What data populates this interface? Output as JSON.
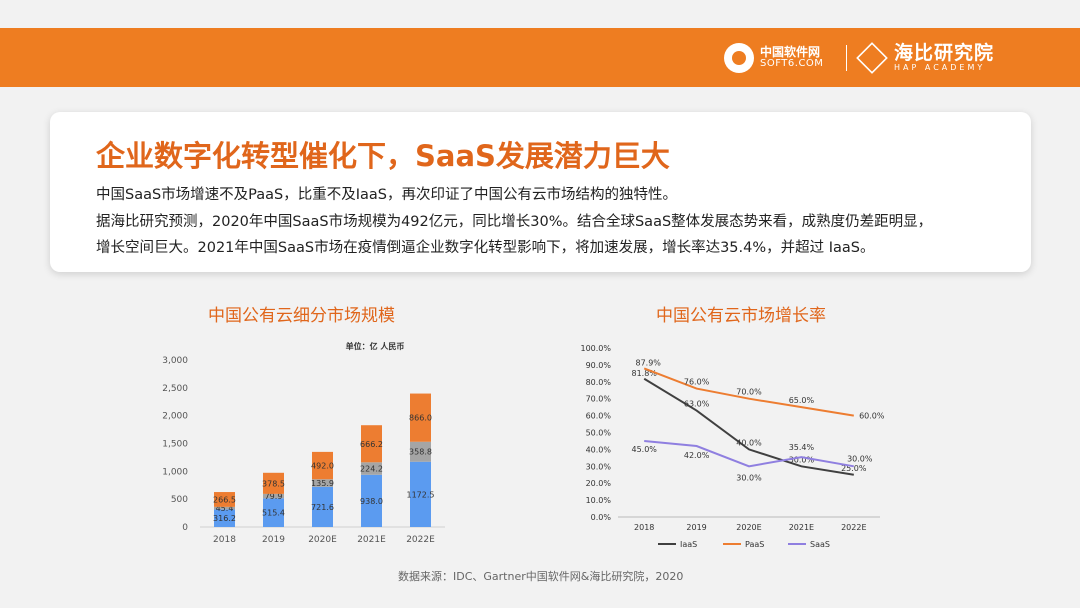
{
  "header": {
    "logo1_line1": "中国软件网",
    "logo1_line2": "SOFT6.COM",
    "logo2_line1": "海比研究院",
    "logo2_line2": "HAP ACADEMY"
  },
  "card": {
    "title": "企业数字化转型催化下，SaaS发展潜力巨大",
    "line1": "中国SaaS市场增速不及PaaS，比重不及IaaS，再次印证了中国公有云市场结构的独特性。",
    "line2": "据海比研究预测，2020年中国SaaS市场规模为492亿元，同比增长30%。结合全球SaaS整体发展态势来看，成熟度仍差距明显，",
    "line3": "增长空间巨大。2021年中国SaaS市场在疫情倒逼企业数字化转型影响下，将加速发展，增长率达35.4%，并超过 IaaS。"
  },
  "source": "数据来源：IDC、Gartner中国软件网&海比研究院，2020",
  "chart_data": [
    {
      "type": "bar",
      "stacked": true,
      "title": "中国公有云细分市场规模",
      "unit_label": "单位：亿 人民币",
      "categories": [
        "2018",
        "2019",
        "2020E",
        "2021E",
        "2022E"
      ],
      "ylim": [
        0,
        3000
      ],
      "yticks": [
        "0",
        "500",
        "1,000",
        "1,500",
        "2,000",
        "2,500",
        "3,000"
      ],
      "series": [
        {
          "values": [
            316.2,
            515.4,
            721.6,
            938.0,
            1172.5
          ],
          "labels": [
            "316.2",
            "515.4",
            "721.6",
            "938.0",
            "1172.5"
          ],
          "color": "#5b9bf0"
        },
        {
          "values": [
            45.4,
            79.9,
            135.9,
            224.2,
            358.8
          ],
          "labels": [
            "45.4",
            "79.9",
            "135.9",
            "224.2",
            "358.8"
          ],
          "color": "#a5a5a5"
        },
        {
          "values": [
            266.5,
            378.5,
            492.0,
            666.2,
            866.0
          ],
          "labels": [
            "266.5",
            "378.5",
            "492.0",
            "666.2",
            "866.0"
          ],
          "color": "#ed7d31"
        }
      ]
    },
    {
      "type": "line",
      "title": "中国公有云市场增长率",
      "categories": [
        "2018",
        "2019",
        "2020E",
        "2021E",
        "2022E"
      ],
      "ylim": [
        0,
        100
      ],
      "yticks": [
        "0.0%",
        "10.0%",
        "20.0%",
        "30.0%",
        "40.0%",
        "50.0%",
        "60.0%",
        "70.0%",
        "80.0%",
        "90.0%",
        "100.0%"
      ],
      "legend": "bottom",
      "series": [
        {
          "name": "IaaS",
          "values": [
            81.8,
            63.0,
            40.0,
            30.0,
            25.0
          ],
          "labels": [
            "81.8%",
            "63.0%",
            "40.0%",
            "30.0%",
            "25.0%"
          ],
          "color": "#404040"
        },
        {
          "name": "PaaS",
          "values": [
            87.9,
            76.0,
            70.0,
            65.0,
            60.0
          ],
          "labels": [
            "87.9%",
            "76.0%",
            "70.0%",
            "65.0%",
            "60.0%"
          ],
          "color": "#ed7d31"
        },
        {
          "name": "SaaS",
          "values": [
            45.0,
            42.0,
            30.0,
            35.4,
            30.0
          ],
          "labels": [
            "45.0%",
            "42.0%",
            "30.0%",
            "35.4%",
            "30.0%"
          ],
          "color": "#8f7fe0"
        }
      ]
    }
  ]
}
